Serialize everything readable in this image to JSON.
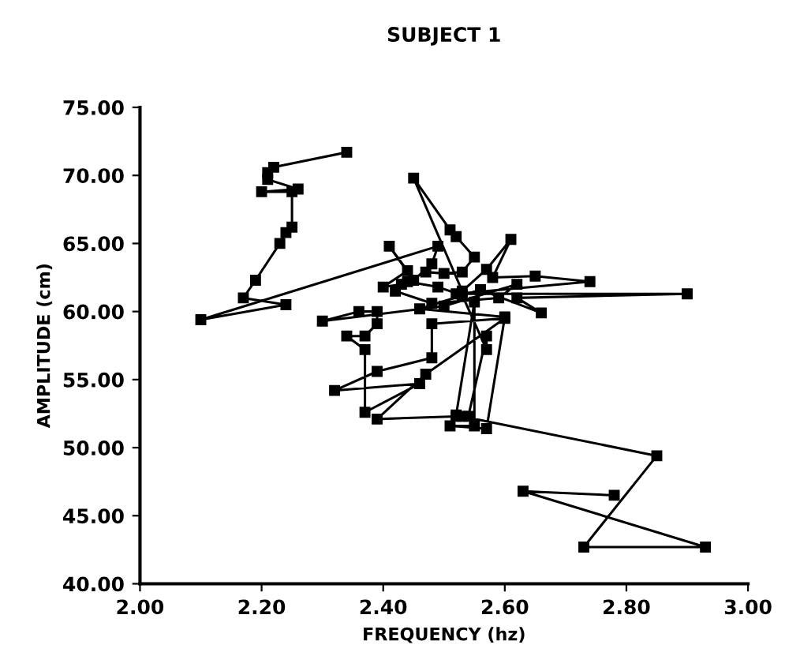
{
  "chart_data": {
    "type": "line",
    "title": "SUBJECT 1",
    "xlabel": "FREQUENCY (hz)",
    "ylabel": "AMPLITUDE (cm)",
    "xlim": [
      2.0,
      3.0
    ],
    "ylim": [
      40,
      75
    ],
    "xticks": [
      {
        "value": 2.0,
        "label": "2.00"
      },
      {
        "value": 2.2,
        "label": "2.20"
      },
      {
        "value": 2.4,
        "label": "2.40"
      },
      {
        "value": 2.6,
        "label": "2.60"
      },
      {
        "value": 2.8,
        "label": "2.80"
      },
      {
        "value": 3.0,
        "label": "3.00"
      }
    ],
    "yticks": [
      {
        "value": 40,
        "label": "40.00"
      },
      {
        "value": 45,
        "label": "45.00"
      },
      {
        "value": 50,
        "label": "50.00"
      },
      {
        "value": 55,
        "label": "55.00"
      },
      {
        "value": 60,
        "label": "60.00"
      },
      {
        "value": 65,
        "label": "65.00"
      },
      {
        "value": 70,
        "label": "70.00"
      },
      {
        "value": 75,
        "label": "75.00"
      }
    ],
    "grid": false,
    "legend": false,
    "marker": "square",
    "line_style": "solid",
    "series": [
      {
        "color": "#000000",
        "x": [
          2.34,
          2.22,
          2.21,
          2.21,
          2.26,
          2.2,
          2.25,
          2.25,
          2.24,
          2.23,
          2.19,
          2.17,
          2.24,
          2.1,
          2.49,
          2.48,
          2.45,
          2.41,
          2.44,
          2.4,
          2.43,
          2.47,
          2.5,
          2.53,
          2.55,
          2.52,
          2.51,
          2.45,
          2.53,
          2.57,
          2.61,
          2.58,
          2.65,
          2.74,
          2.52,
          2.9,
          2.62,
          2.66,
          2.56,
          2.46,
          2.6,
          2.57,
          2.51,
          2.55,
          2.55,
          2.52,
          2.54,
          2.57,
          2.57,
          2.53,
          2.49,
          2.44,
          2.42,
          2.48,
          2.59,
          2.62,
          2.5,
          2.3,
          2.36,
          2.39,
          2.39,
          2.37,
          2.34,
          2.37,
          2.37,
          2.46,
          2.32,
          2.39,
          2.48,
          2.48,
          2.6,
          2.47,
          2.39,
          2.52,
          2.53,
          2.85,
          2.73,
          2.93,
          2.63,
          2.78
        ],
        "values": [
          71.7,
          70.6,
          70.2,
          69.7,
          69.0,
          68.8,
          68.8,
          66.2,
          65.8,
          65.0,
          62.3,
          61.0,
          60.5,
          59.4,
          64.8,
          63.5,
          62.3,
          64.8,
          63.0,
          61.8,
          62.0,
          62.9,
          62.8,
          62.9,
          64.0,
          65.5,
          66.0,
          69.8,
          61.5,
          63.1,
          65.3,
          62.5,
          62.6,
          62.2,
          61.3,
          61.3,
          61.0,
          59.9,
          61.6,
          60.2,
          59.6,
          51.4,
          51.6,
          51.6,
          60.7,
          52.4,
          52.3,
          58.2,
          57.2,
          61.2,
          61.8,
          62.2,
          61.5,
          60.6,
          61.0,
          62.0,
          60.4,
          59.3,
          60.0,
          60.0,
          59.1,
          58.2,
          58.2,
          57.2,
          52.6,
          54.7,
          54.2,
          55.6,
          56.6,
          59.1,
          59.5,
          55.4,
          52.1,
          52.3,
          52.3,
          49.4,
          42.7,
          42.7,
          46.8,
          46.5
        ]
      }
    ]
  }
}
